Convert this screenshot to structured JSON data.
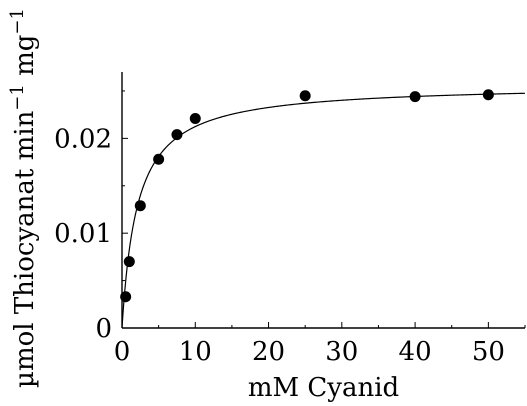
{
  "chart_data": {
    "type": "scatter",
    "title": "",
    "xlabel": "mM Cyanid",
    "ylabel": "µmol Thiocyanat min",
    "ylabel_exp1": "−1",
    "ylabel_unit2": " mg",
    "ylabel_exp2": "−1",
    "xlim": [
      0,
      55
    ],
    "ylim": [
      0,
      0.027
    ],
    "xticks": [
      0,
      10,
      20,
      30,
      40,
      50
    ],
    "xtick_labels": [
      "0",
      "10",
      "20",
      "30",
      "40",
      "50"
    ],
    "yticks": [
      0,
      0.01,
      0.02
    ],
    "ytick_labels": [
      "0",
      "0.01",
      "0.02"
    ],
    "grid": false,
    "legend": "none",
    "series": [
      {
        "type": "scatter",
        "x": [
          0.5,
          1,
          2.5,
          5,
          7.5,
          10,
          25,
          40,
          50
        ],
        "y": [
          0.0033,
          0.007,
          0.0129,
          0.0178,
          0.0204,
          0.0221,
          0.0245,
          0.0244,
          0.0246
        ]
      },
      {
        "type": "line",
        "model": "michaelis-menten",
        "vmax": 0.0257,
        "km": 2.1
      }
    ]
  }
}
